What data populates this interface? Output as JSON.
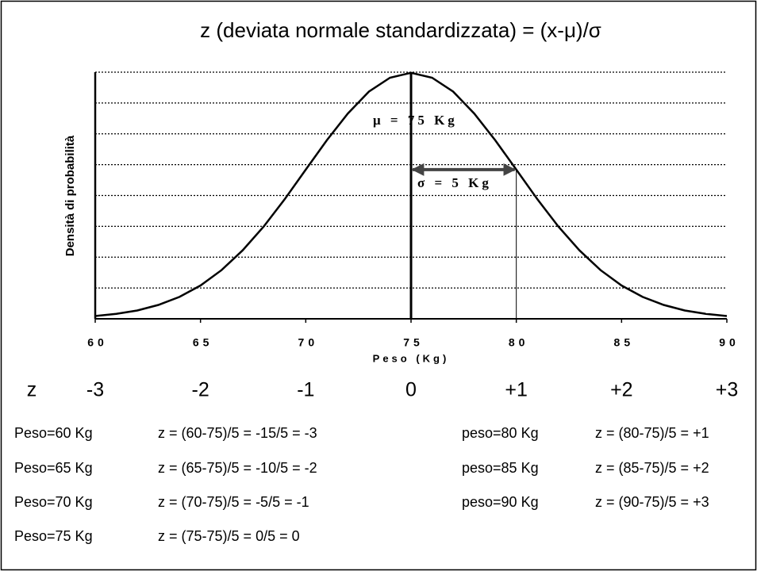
{
  "chart_data": {
    "type": "line",
    "title": "z (deviata normale standardizzata) = (x-μ)/σ",
    "x_label": "Peso (Kg)",
    "y_label": "Densità di probabilità",
    "x": [
      60,
      61,
      62,
      63,
      64,
      65,
      66,
      67,
      68,
      69,
      70,
      71,
      72,
      73,
      74,
      75,
      76,
      77,
      78,
      79,
      80,
      81,
      82,
      83,
      84,
      85,
      86,
      87,
      88,
      89,
      90
    ],
    "values": [
      0.0009,
      0.0016,
      0.0027,
      0.0045,
      0.0071,
      0.0108,
      0.0158,
      0.0222,
      0.0299,
      0.0388,
      0.0484,
      0.0579,
      0.0666,
      0.0737,
      0.0782,
      0.0798,
      0.0782,
      0.0737,
      0.0666,
      0.0579,
      0.0484,
      0.0388,
      0.0299,
      0.0222,
      0.0158,
      0.0108,
      0.0071,
      0.0045,
      0.0027,
      0.0016,
      0.0009
    ],
    "color": "#000000",
    "xlim": [
      60,
      90
    ],
    "xticks": [
      60,
      65,
      70,
      75,
      80,
      85,
      90
    ],
    "ylim": [
      0,
      0.08
    ],
    "yticks": [
      0,
      0.01,
      0.02,
      0.03,
      0.04,
      0.05,
      0.06,
      0.07,
      0.08
    ],
    "grid": true,
    "annotations": {
      "mean": 75,
      "mean_label": "μ = 75 Kg",
      "sigma": 5,
      "sigma_label": "σ = 5 Kg"
    }
  },
  "z_row": {
    "label": "z",
    "values": [
      "-3",
      "-2",
      "-1",
      "0",
      "+1",
      "+2",
      "+3"
    ]
  },
  "calculations": {
    "left": [
      [
        "Peso=60 Kg",
        "z = (60-75)/5 = -15/5 = -3"
      ],
      [
        "Peso=65 Kg",
        "z = (65-75)/5 = -10/5 = -2"
      ],
      [
        "Peso=70 Kg",
        "z = (70-75)/5 = -5/5 = -1"
      ],
      [
        "Peso=75 Kg",
        "z = (75-75)/5 = 0/5 = 0"
      ]
    ],
    "right": [
      [
        "peso=80 Kg",
        "z = (80-75)/5 = +1"
      ],
      [
        "peso=85 Kg",
        "z = (85-75)/5 = +2"
      ],
      [
        "peso=90 Kg",
        "z = (90-75)/5 = +3"
      ]
    ]
  }
}
